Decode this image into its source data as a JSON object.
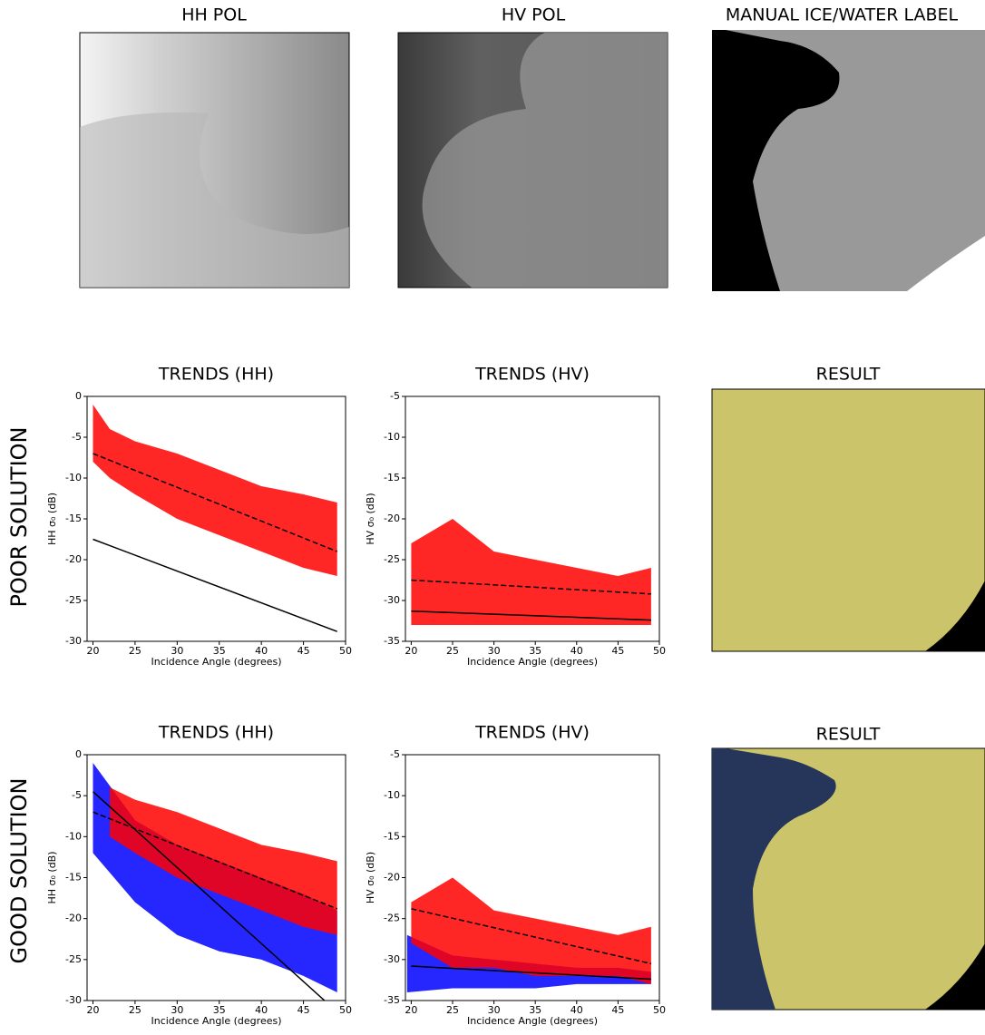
{
  "row_labels": [
    "POOR SOLUTION",
    "GOOD SOLUTION"
  ],
  "images": [
    {
      "title": "HH POL"
    },
    {
      "title": "HV POL"
    },
    {
      "title": "MANUAL ICE/WATER LABEL"
    },
    {
      "title": "RESULT"
    },
    {
      "title": "RESULT"
    }
  ],
  "chart_data": [
    {
      "type": "scatter",
      "title": "TRENDS (HH)",
      "xlabel": "Incidence Angle (degrees)",
      "ylabel": "HH σ₀ (dB)",
      "xlim": [
        19.3,
        50
      ],
      "ylim": [
        -30,
        0
      ],
      "xticks": [
        20,
        25,
        30,
        35,
        40,
        45,
        50
      ],
      "yticks": [
        0,
        -5,
        -10,
        -15,
        -20,
        -25,
        -30
      ],
      "bands": [
        {
          "color": "#ff0000",
          "x": [
            20,
            22,
            25,
            30,
            35,
            40,
            45,
            49
          ],
          "upper": [
            -1,
            -4,
            -5.5,
            -7,
            -9,
            -11,
            -12,
            -13
          ],
          "lower": [
            -8,
            -10,
            -12,
            -15,
            -17,
            -19,
            -21,
            -22
          ]
        }
      ],
      "lines": [
        {
          "color": "#000000",
          "dashed": true,
          "x": [
            20,
            49
          ],
          "values": [
            -7,
            -19
          ]
        },
        {
          "color": "#000000",
          "dashed": false,
          "x": [
            20,
            49
          ],
          "values": [
            -17.5,
            -28.8
          ]
        }
      ]
    },
    {
      "type": "scatter",
      "title": "TRENDS (HV)",
      "xlabel": "Incidence Angle (degrees)",
      "ylabel": "HV σ₀ (dB)",
      "xlim": [
        19.3,
        50
      ],
      "ylim": [
        -35,
        -5
      ],
      "xticks": [
        20,
        25,
        30,
        35,
        40,
        45,
        50
      ],
      "yticks": [
        -5,
        -10,
        -15,
        -20,
        -25,
        -30,
        -35
      ],
      "bands": [
        {
          "color": "#ff0000",
          "x": [
            20,
            25,
            30,
            35,
            40,
            45,
            49
          ],
          "upper": [
            -23,
            -20,
            -24,
            -25,
            -26,
            -27,
            -26
          ],
          "lower": [
            -33,
            -33,
            -33,
            -33,
            -33,
            -33,
            -33
          ]
        }
      ],
      "lines": [
        {
          "color": "#000000",
          "dashed": true,
          "x": [
            20,
            49
          ],
          "values": [
            -27.5,
            -29.2
          ]
        },
        {
          "color": "#000000",
          "dashed": false,
          "x": [
            20,
            49
          ],
          "values": [
            -31.3,
            -32.4
          ]
        }
      ]
    },
    {
      "type": "scatter",
      "title": "TRENDS (HH)",
      "xlabel": "Incidence Angle (degrees)",
      "ylabel": "HH σ₀ (dB)",
      "xlim": [
        19.3,
        50
      ],
      "ylim": [
        -30,
        0
      ],
      "xticks": [
        20,
        25,
        30,
        35,
        40,
        45,
        50
      ],
      "yticks": [
        0,
        -5,
        -10,
        -15,
        -20,
        -25,
        -30
      ],
      "bands": [
        {
          "color": "#0000ff",
          "x": [
            20,
            25,
            30,
            35,
            40,
            45,
            49
          ],
          "upper": [
            -1,
            -8,
            -11,
            -13,
            -15,
            -17,
            -19
          ],
          "lower": [
            -12,
            -18,
            -22,
            -24,
            -25,
            -27,
            -29
          ]
        },
        {
          "color": "#ff0000",
          "x": [
            22,
            25,
            30,
            35,
            40,
            45,
            49
          ],
          "upper": [
            -4,
            -5.5,
            -7,
            -9,
            -11,
            -12,
            -13
          ],
          "lower": [
            -10,
            -12,
            -15,
            -17,
            -19,
            -21,
            -22
          ]
        }
      ],
      "lines": [
        {
          "color": "#000000",
          "dashed": true,
          "x": [
            20,
            49
          ],
          "values": [
            -7,
            -18.8
          ]
        },
        {
          "color": "#000000",
          "dashed": false,
          "x": [
            20,
            47.5
          ],
          "values": [
            -4.5,
            -30
          ]
        }
      ]
    },
    {
      "type": "scatter",
      "title": "TRENDS (HV)",
      "xlabel": "Incidence Angle (degrees)",
      "ylabel": "HV σ₀ (dB)",
      "xlim": [
        19.3,
        50
      ],
      "ylim": [
        -35,
        -5
      ],
      "xticks": [
        20,
        25,
        30,
        35,
        40,
        45,
        50
      ],
      "yticks": [
        -5,
        -10,
        -15,
        -20,
        -25,
        -30,
        -35
      ],
      "bands": [
        {
          "color": "#0000ff",
          "x": [
            19.5,
            25,
            30,
            35,
            40,
            45,
            49
          ],
          "upper": [
            -27,
            -29.5,
            -30,
            -30.5,
            -31,
            -31,
            -31.5
          ],
          "lower": [
            -34,
            -33.5,
            -33.5,
            -33.5,
            -33,
            -33,
            -33
          ]
        },
        {
          "color": "#ff0000",
          "x": [
            20,
            25,
            30,
            35,
            40,
            45,
            49
          ],
          "upper": [
            -23,
            -20,
            -24,
            -25,
            -26,
            -27,
            -26
          ],
          "lower": [
            -28,
            -31,
            -31,
            -32,
            -32,
            -32,
            -33
          ]
        }
      ],
      "lines": [
        {
          "color": "#000000",
          "dashed": true,
          "x": [
            20,
            49
          ],
          "values": [
            -23.8,
            -30.5
          ]
        },
        {
          "color": "#000000",
          "dashed": false,
          "x": [
            20,
            49
          ],
          "values": [
            -30.8,
            -32.4
          ]
        }
      ]
    }
  ]
}
